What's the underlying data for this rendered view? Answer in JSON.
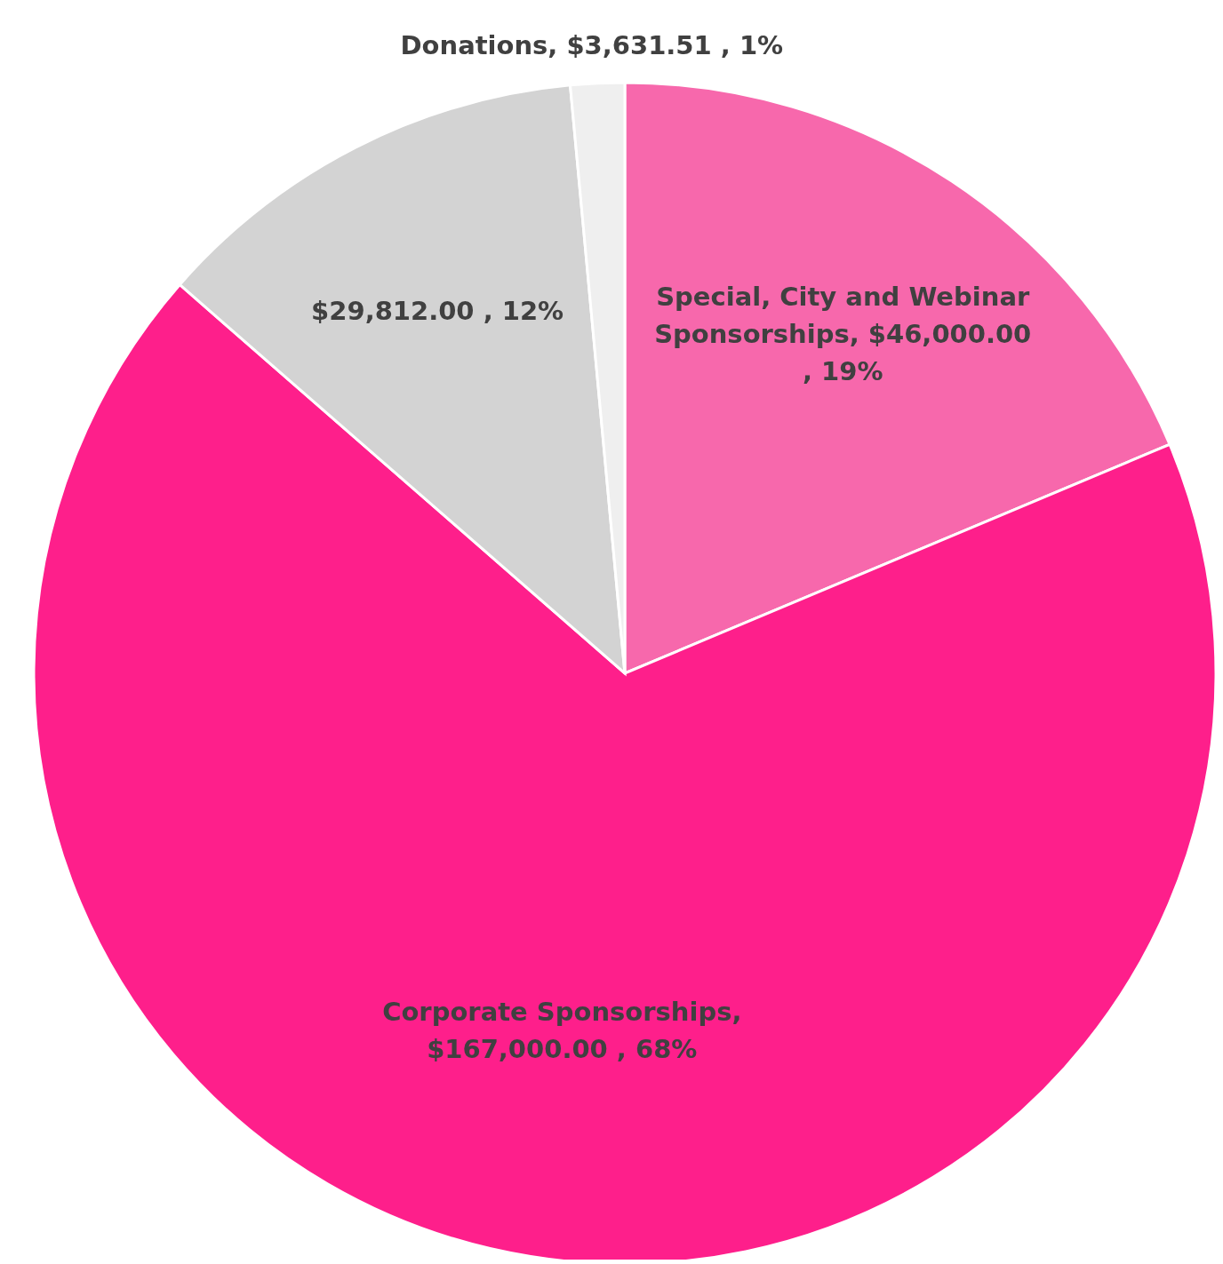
{
  "chart_data": {
    "type": "pie",
    "categories": [
      "Special, City and Webinar Sponsorships",
      "Corporate Sponsorships",
      null,
      "Donations"
    ],
    "values": [
      46000,
      167000,
      29812,
      3631.51
    ],
    "value_labels": [
      ",  $46,000.00 , 19%",
      ", $167,000.00 , 68%",
      "$29,812.00 , 12%",
      ",  $3,631.51 , 1%"
    ],
    "colors": [
      "#f768ac",
      "#fe1f8b",
      "#d3d3d3",
      "#efefef"
    ],
    "legend": false
  }
}
